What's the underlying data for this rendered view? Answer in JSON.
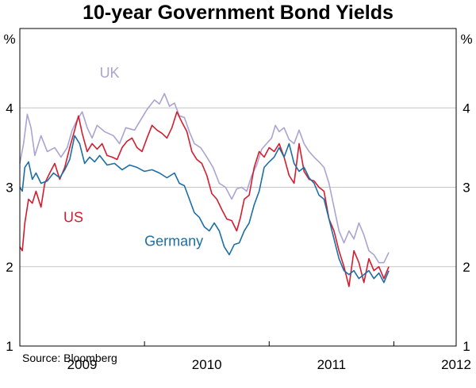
{
  "chart_data": {
    "type": "line",
    "title": "10-year Government Bond Yields",
    "ylabel": "%",
    "ylim": [
      1,
      5
    ],
    "yticks": [
      1,
      2,
      3,
      4
    ],
    "ytick_labels": [
      "1",
      "2",
      "3",
      "4"
    ],
    "xlim": [
      2008.5,
      2012.0
    ],
    "xtick_positions": [
      2009,
      2010,
      2011,
      2012
    ],
    "xtick_labels": [
      "2009",
      "2010",
      "2011",
      "2012"
    ],
    "year_boundaries": [
      2009.5,
      2010.5,
      2011.5
    ],
    "grid": true,
    "source": "Source: Bloomberg",
    "series": [
      {
        "name": "UK",
        "color": "#a9a4d1",
        "points": [
          [
            2008.5,
            3.3
          ],
          [
            2008.53,
            3.55
          ],
          [
            2008.56,
            3.92
          ],
          [
            2008.59,
            3.75
          ],
          [
            2008.62,
            3.4
          ],
          [
            2008.67,
            3.65
          ],
          [
            2008.72,
            3.45
          ],
          [
            2008.78,
            3.5
          ],
          [
            2008.83,
            3.38
          ],
          [
            2008.88,
            3.5
          ],
          [
            2008.92,
            3.72
          ],
          [
            2008.96,
            3.85
          ],
          [
            2009.0,
            3.95
          ],
          [
            2009.04,
            3.75
          ],
          [
            2009.08,
            3.62
          ],
          [
            2009.12,
            3.78
          ],
          [
            2009.18,
            3.7
          ],
          [
            2009.25,
            3.65
          ],
          [
            2009.3,
            3.55
          ],
          [
            2009.35,
            3.75
          ],
          [
            2009.42,
            3.72
          ],
          [
            2009.47,
            3.85
          ],
          [
            2009.52,
            3.98
          ],
          [
            2009.58,
            4.1
          ],
          [
            2009.62,
            4.05
          ],
          [
            2009.66,
            4.18
          ],
          [
            2009.7,
            4.02
          ],
          [
            2009.74,
            4.06
          ],
          [
            2009.78,
            3.9
          ],
          [
            2009.82,
            3.88
          ],
          [
            2009.86,
            3.7
          ],
          [
            2009.9,
            3.55
          ],
          [
            2009.95,
            3.5
          ],
          [
            2010.0,
            3.38
          ],
          [
            2010.05,
            3.25
          ],
          [
            2010.1,
            3.05
          ],
          [
            2010.15,
            3.0
          ],
          [
            2010.2,
            2.85
          ],
          [
            2010.24,
            2.98
          ],
          [
            2010.28,
            3.0
          ],
          [
            2010.32,
            2.95
          ],
          [
            2010.36,
            3.15
          ],
          [
            2010.4,
            3.28
          ],
          [
            2010.44,
            3.48
          ],
          [
            2010.48,
            3.55
          ],
          [
            2010.52,
            3.62
          ],
          [
            2010.55,
            3.78
          ],
          [
            2010.58,
            3.7
          ],
          [
            2010.62,
            3.75
          ],
          [
            2010.66,
            3.6
          ],
          [
            2010.7,
            3.55
          ],
          [
            2010.74,
            3.72
          ],
          [
            2010.78,
            3.55
          ],
          [
            2010.82,
            3.45
          ],
          [
            2010.86,
            3.38
          ],
          [
            2010.9,
            3.32
          ],
          [
            2010.94,
            3.25
          ],
          [
            2010.98,
            3.05
          ],
          [
            2011.02,
            2.75
          ],
          [
            2011.06,
            2.45
          ],
          [
            2011.1,
            2.3
          ],
          [
            2011.14,
            2.45
          ],
          [
            2011.18,
            2.35
          ],
          [
            2011.22,
            2.55
          ],
          [
            2011.26,
            2.4
          ],
          [
            2011.3,
            2.2
          ],
          [
            2011.34,
            2.15
          ],
          [
            2011.38,
            2.05
          ],
          [
            2011.42,
            2.05
          ],
          [
            2011.46,
            2.18
          ]
        ]
      },
      {
        "name": "US",
        "color": "#d31d2f",
        "points": [
          [
            2008.5,
            2.25
          ],
          [
            2008.52,
            2.2
          ],
          [
            2008.54,
            2.55
          ],
          [
            2008.57,
            2.85
          ],
          [
            2008.6,
            2.8
          ],
          [
            2008.63,
            2.95
          ],
          [
            2008.67,
            2.75
          ],
          [
            2008.7,
            3.05
          ],
          [
            2008.74,
            3.18
          ],
          [
            2008.78,
            3.3
          ],
          [
            2008.82,
            3.1
          ],
          [
            2008.86,
            3.25
          ],
          [
            2008.9,
            3.5
          ],
          [
            2008.94,
            3.72
          ],
          [
            2008.97,
            3.9
          ],
          [
            2009.0,
            3.68
          ],
          [
            2009.04,
            3.45
          ],
          [
            2009.08,
            3.55
          ],
          [
            2009.12,
            3.48
          ],
          [
            2009.16,
            3.55
          ],
          [
            2009.2,
            3.4
          ],
          [
            2009.24,
            3.38
          ],
          [
            2009.28,
            3.35
          ],
          [
            2009.32,
            3.5
          ],
          [
            2009.36,
            3.58
          ],
          [
            2009.4,
            3.62
          ],
          [
            2009.44,
            3.5
          ],
          [
            2009.48,
            3.45
          ],
          [
            2009.52,
            3.62
          ],
          [
            2009.56,
            3.78
          ],
          [
            2009.6,
            3.72
          ],
          [
            2009.64,
            3.68
          ],
          [
            2009.68,
            3.62
          ],
          [
            2009.72,
            3.75
          ],
          [
            2009.76,
            3.95
          ],
          [
            2009.8,
            3.82
          ],
          [
            2009.84,
            3.7
          ],
          [
            2009.88,
            3.45
          ],
          [
            2009.92,
            3.35
          ],
          [
            2009.96,
            3.3
          ],
          [
            2010.0,
            3.15
          ],
          [
            2010.04,
            2.92
          ],
          [
            2010.08,
            2.85
          ],
          [
            2010.12,
            2.72
          ],
          [
            2010.16,
            2.6
          ],
          [
            2010.2,
            2.58
          ],
          [
            2010.24,
            2.45
          ],
          [
            2010.27,
            2.62
          ],
          [
            2010.3,
            2.85
          ],
          [
            2010.34,
            2.9
          ],
          [
            2010.38,
            3.25
          ],
          [
            2010.42,
            3.45
          ],
          [
            2010.46,
            3.38
          ],
          [
            2010.5,
            3.5
          ],
          [
            2010.54,
            3.45
          ],
          [
            2010.58,
            3.55
          ],
          [
            2010.62,
            3.38
          ],
          [
            2010.66,
            3.15
          ],
          [
            2010.7,
            3.05
          ],
          [
            2010.74,
            3.55
          ],
          [
            2010.78,
            3.2
          ],
          [
            2010.82,
            3.1
          ],
          [
            2010.86,
            3.08
          ],
          [
            2010.9,
            3.0
          ],
          [
            2010.94,
            2.95
          ],
          [
            2010.98,
            2.6
          ],
          [
            2011.02,
            2.45
          ],
          [
            2011.06,
            2.2
          ],
          [
            2011.1,
            2.0
          ],
          [
            2011.14,
            1.75
          ],
          [
            2011.18,
            2.2
          ],
          [
            2011.22,
            2.05
          ],
          [
            2011.26,
            1.8
          ],
          [
            2011.3,
            2.1
          ],
          [
            2011.34,
            1.95
          ],
          [
            2011.38,
            2.0
          ],
          [
            2011.42,
            1.85
          ],
          [
            2011.46,
            2.0
          ]
        ]
      },
      {
        "name": "Germany",
        "color": "#1c6ea4",
        "points": [
          [
            2008.5,
            3.0
          ],
          [
            2008.52,
            2.95
          ],
          [
            2008.54,
            3.25
          ],
          [
            2008.57,
            3.32
          ],
          [
            2008.6,
            3.1
          ],
          [
            2008.63,
            3.18
          ],
          [
            2008.67,
            3.05
          ],
          [
            2008.72,
            3.08
          ],
          [
            2008.77,
            3.18
          ],
          [
            2008.82,
            3.12
          ],
          [
            2008.86,
            3.22
          ],
          [
            2008.9,
            3.35
          ],
          [
            2008.94,
            3.65
          ],
          [
            2008.98,
            3.55
          ],
          [
            2009.02,
            3.3
          ],
          [
            2009.06,
            3.38
          ],
          [
            2009.1,
            3.32
          ],
          [
            2009.14,
            3.4
          ],
          [
            2009.2,
            3.28
          ],
          [
            2009.26,
            3.3
          ],
          [
            2009.32,
            3.22
          ],
          [
            2009.38,
            3.28
          ],
          [
            2009.44,
            3.25
          ],
          [
            2009.5,
            3.2
          ],
          [
            2009.56,
            3.22
          ],
          [
            2009.62,
            3.18
          ],
          [
            2009.68,
            3.12
          ],
          [
            2009.74,
            3.18
          ],
          [
            2009.78,
            3.05
          ],
          [
            2009.82,
            3.02
          ],
          [
            2009.86,
            2.85
          ],
          [
            2009.9,
            2.68
          ],
          [
            2009.94,
            2.62
          ],
          [
            2009.98,
            2.5
          ],
          [
            2010.02,
            2.45
          ],
          [
            2010.06,
            2.55
          ],
          [
            2010.1,
            2.45
          ],
          [
            2010.14,
            2.25
          ],
          [
            2010.18,
            2.15
          ],
          [
            2010.22,
            2.28
          ],
          [
            2010.26,
            2.3
          ],
          [
            2010.3,
            2.45
          ],
          [
            2010.34,
            2.55
          ],
          [
            2010.38,
            2.78
          ],
          [
            2010.42,
            2.95
          ],
          [
            2010.46,
            3.25
          ],
          [
            2010.5,
            3.32
          ],
          [
            2010.54,
            3.38
          ],
          [
            2010.58,
            3.5
          ],
          [
            2010.62,
            3.38
          ],
          [
            2010.66,
            3.55
          ],
          [
            2010.7,
            3.3
          ],
          [
            2010.74,
            3.2
          ],
          [
            2010.78,
            3.25
          ],
          [
            2010.82,
            3.12
          ],
          [
            2010.86,
            3.05
          ],
          [
            2010.9,
            2.9
          ],
          [
            2010.94,
            2.85
          ],
          [
            2010.98,
            2.6
          ],
          [
            2011.02,
            2.35
          ],
          [
            2011.06,
            2.1
          ],
          [
            2011.1,
            1.95
          ],
          [
            2011.14,
            1.9
          ],
          [
            2011.18,
            1.95
          ],
          [
            2011.22,
            1.85
          ],
          [
            2011.26,
            1.9
          ],
          [
            2011.3,
            1.95
          ],
          [
            2011.34,
            1.85
          ],
          [
            2011.38,
            1.92
          ],
          [
            2011.42,
            1.8
          ],
          [
            2011.46,
            1.95
          ]
        ]
      }
    ],
    "annotations": [
      {
        "text": "UK",
        "series": "UK",
        "at": [
          2009.14,
          4.38
        ]
      },
      {
        "text": "US",
        "series": "US",
        "at": [
          2008.85,
          2.56
        ]
      },
      {
        "text": "Germany",
        "series": "Germany",
        "at": [
          2009.5,
          2.26
        ]
      }
    ]
  }
}
